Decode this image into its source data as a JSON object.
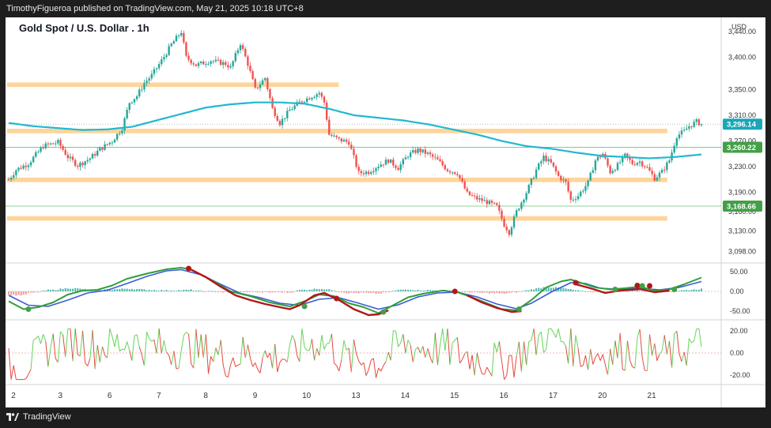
{
  "publisher_line": "TimothyFigueroa published on TradingView.com, May 21, 2025 10:18 UTC+8",
  "title": "Gold Spot / U.S. Dollar . 1h",
  "currency": "USD",
  "brand": "TradingView",
  "colors": {
    "up": "#26a69a",
    "down": "#ef5350",
    "ma": "#21b8d0",
    "zone": "#ffd49a",
    "green_line": "#4caf50",
    "fast_line": "#2e9e3a",
    "slow_line": "#3d5bd6",
    "red_line": "#b0171b"
  },
  "price_axis": {
    "ticks": [
      "3,440.00",
      "3,400.00",
      "3,350.00",
      "3,310.00",
      "3,270.00",
      "3,230.00",
      "3,190.00",
      "3,160.00",
      "3,130.00",
      "3,098.00"
    ],
    "tick_values": [
      3440,
      3400,
      3350,
      3310,
      3270,
      3230,
      3190,
      3160,
      3130,
      3098
    ],
    "range": [
      3090,
      3450
    ],
    "tags": [
      {
        "label": "3,296.14",
        "value": 3296.14,
        "color": "#1aa7b8"
      },
      {
        "label": "3,260.22",
        "value": 3260.22,
        "color": "#43a047"
      },
      {
        "label": "3,168.66",
        "value": 3168.66,
        "color": "#43a047"
      }
    ]
  },
  "zones": [
    {
      "low": 3354,
      "high": 3361,
      "from": 0,
      "to": 0.47
    },
    {
      "low": 3282,
      "high": 3289,
      "from": 0,
      "to": 0.93
    },
    {
      "low": 3206,
      "high": 3213,
      "from": 0,
      "to": 0.93
    },
    {
      "low": 3146,
      "high": 3153,
      "from": 0,
      "to": 0.93
    }
  ],
  "lines": [
    3260.22,
    3168.66
  ],
  "macd_axis": {
    "ticks": [
      "50.00",
      "0.00",
      "-50.00"
    ],
    "tick_values": [
      50,
      0,
      -50
    ]
  },
  "rsi_axis": {
    "ticks": [
      "20.00",
      "0.00",
      "-20.00"
    ],
    "tick_values": [
      20,
      0,
      -20
    ]
  },
  "x_axis": {
    "labels": [
      "2",
      "3",
      "6",
      "7",
      "8",
      "9",
      "10",
      "13",
      "14",
      "15",
      "16",
      "17",
      "20",
      "21"
    ]
  },
  "chart_data": {
    "type": "candlestick",
    "title": "Gold Spot / U.S. Dollar . 1h",
    "symbol": "XAUUSD",
    "interval": "1h",
    "anchors": [
      [
        0,
        3210
      ],
      [
        3,
        3225
      ],
      [
        8,
        3235
      ],
      [
        14,
        3262
      ],
      [
        20,
        3268
      ],
      [
        24,
        3245
      ],
      [
        28,
        3232
      ],
      [
        33,
        3243
      ],
      [
        37,
        3257
      ],
      [
        42,
        3270
      ],
      [
        46,
        3290
      ],
      [
        49,
        3330
      ],
      [
        52,
        3340
      ],
      [
        55,
        3360
      ],
      [
        58,
        3372
      ],
      [
        62,
        3395
      ],
      [
        66,
        3420
      ],
      [
        70,
        3440
      ],
      [
        72,
        3400
      ],
      [
        76,
        3388
      ],
      [
        82,
        3395
      ],
      [
        88,
        3390
      ],
      [
        90,
        3384
      ],
      [
        94,
        3422
      ],
      [
        97,
        3390
      ],
      [
        100,
        3350
      ],
      [
        104,
        3368
      ],
      [
        107,
        3320
      ],
      [
        110,
        3298
      ],
      [
        114,
        3318
      ],
      [
        118,
        3330
      ],
      [
        122,
        3338
      ],
      [
        126,
        3345
      ],
      [
        128,
        3330
      ],
      [
        130,
        3280
      ],
      [
        134,
        3272
      ],
      [
        138,
        3268
      ],
      [
        142,
        3220
      ],
      [
        146,
        3222
      ],
      [
        150,
        3232
      ],
      [
        154,
        3240
      ],
      [
        158,
        3228
      ],
      [
        162,
        3248
      ],
      [
        166,
        3256
      ],
      [
        170,
        3250
      ],
      [
        174,
        3240
      ],
      [
        178,
        3225
      ],
      [
        182,
        3220
      ],
      [
        186,
        3188
      ],
      [
        190,
        3180
      ],
      [
        194,
        3175
      ],
      [
        198,
        3168
      ],
      [
        201,
        3140
      ],
      [
        203,
        3128
      ],
      [
        206,
        3160
      ],
      [
        210,
        3190
      ],
      [
        214,
        3225
      ],
      [
        217,
        3245
      ],
      [
        220,
        3235
      ],
      [
        223,
        3215
      ],
      [
        226,
        3205
      ],
      [
        228,
        3178
      ],
      [
        231,
        3185
      ],
      [
        235,
        3205
      ],
      [
        238,
        3240
      ],
      [
        241,
        3250
      ],
      [
        244,
        3222
      ],
      [
        247,
        3232
      ],
      [
        250,
        3247
      ],
      [
        253,
        3235
      ],
      [
        256,
        3238
      ],
      [
        259,
        3228
      ],
      [
        262,
        3212
      ],
      [
        265,
        3222
      ],
      [
        268,
        3240
      ],
      [
        271,
        3278
      ],
      [
        274,
        3285
      ],
      [
        276,
        3293
      ],
      [
        279,
        3300
      ],
      [
        281,
        3296
      ]
    ],
    "ma_anchors": [
      [
        0,
        3298
      ],
      [
        10,
        3293
      ],
      [
        20,
        3290
      ],
      [
        30,
        3287
      ],
      [
        40,
        3288
      ],
      [
        50,
        3292
      ],
      [
        60,
        3302
      ],
      [
        70,
        3312
      ],
      [
        80,
        3322
      ],
      [
        90,
        3327
      ],
      [
        100,
        3330
      ],
      [
        110,
        3330
      ],
      [
        120,
        3328
      ],
      [
        130,
        3320
      ],
      [
        140,
        3310
      ],
      [
        150,
        3306
      ],
      [
        160,
        3302
      ],
      [
        170,
        3296
      ],
      [
        180,
        3288
      ],
      [
        190,
        3280
      ],
      [
        200,
        3270
      ],
      [
        210,
        3262
      ],
      [
        220,
        3258
      ],
      [
        230,
        3252
      ],
      [
        240,
        3247
      ],
      [
        250,
        3245
      ],
      [
        260,
        3243
      ],
      [
        270,
        3245
      ],
      [
        281,
        3249
      ]
    ],
    "macd_fast": [
      [
        0,
        -25
      ],
      [
        6,
        -45
      ],
      [
        12,
        -40
      ],
      [
        18,
        -28
      ],
      [
        24,
        -8
      ],
      [
        30,
        2
      ],
      [
        36,
        4
      ],
      [
        42,
        15
      ],
      [
        48,
        32
      ],
      [
        56,
        45
      ],
      [
        64,
        56
      ],
      [
        70,
        60
      ],
      [
        74,
        55
      ],
      [
        82,
        30
      ],
      [
        90,
        0
      ],
      [
        98,
        -12
      ],
      [
        106,
        -28
      ],
      [
        114,
        -38
      ],
      [
        120,
        -25
      ],
      [
        126,
        -8
      ],
      [
        132,
        -12
      ],
      [
        138,
        -30
      ],
      [
        144,
        -40
      ],
      [
        150,
        -55
      ],
      [
        156,
        -35
      ],
      [
        162,
        -15
      ],
      [
        168,
        -6
      ],
      [
        176,
        2
      ],
      [
        182,
        -2
      ],
      [
        188,
        -15
      ],
      [
        194,
        -30
      ],
      [
        200,
        -45
      ],
      [
        206,
        -48
      ],
      [
        212,
        -22
      ],
      [
        218,
        10
      ],
      [
        224,
        25
      ],
      [
        228,
        30
      ],
      [
        232,
        22
      ],
      [
        238,
        10
      ],
      [
        244,
        5
      ],
      [
        250,
        8
      ],
      [
        256,
        12
      ],
      [
        262,
        2
      ],
      [
        268,
        5
      ],
      [
        274,
        18
      ],
      [
        281,
        35
      ]
    ],
    "macd_slow": [
      [
        0,
        -10
      ],
      [
        8,
        -35
      ],
      [
        16,
        -38
      ],
      [
        24,
        -22
      ],
      [
        32,
        -4
      ],
      [
        40,
        3
      ],
      [
        48,
        20
      ],
      [
        56,
        38
      ],
      [
        64,
        52
      ],
      [
        70,
        55
      ],
      [
        78,
        42
      ],
      [
        86,
        18
      ],
      [
        94,
        -5
      ],
      [
        102,
        -16
      ],
      [
        110,
        -30
      ],
      [
        118,
        -35
      ],
      [
        126,
        -20
      ],
      [
        134,
        -16
      ],
      [
        142,
        -30
      ],
      [
        150,
        -45
      ],
      [
        158,
        -34
      ],
      [
        166,
        -14
      ],
      [
        174,
        -4
      ],
      [
        182,
        -2
      ],
      [
        190,
        -14
      ],
      [
        198,
        -32
      ],
      [
        206,
        -44
      ],
      [
        212,
        -30
      ],
      [
        220,
        -2
      ],
      [
        228,
        22
      ],
      [
        234,
        20
      ],
      [
        240,
        8
      ],
      [
        248,
        5
      ],
      [
        256,
        8
      ],
      [
        264,
        4
      ],
      [
        272,
        10
      ],
      [
        281,
        25
      ]
    ],
    "macd_red": [
      [
        74,
        55
      ],
      [
        80,
        36
      ],
      [
        86,
        12
      ],
      [
        92,
        -10
      ],
      [
        98,
        -22
      ],
      [
        104,
        -32
      ],
      [
        110,
        -40
      ],
      [
        114,
        -45
      ],
      [
        118,
        -35
      ],
      [
        124,
        -10
      ],
      [
        128,
        -4
      ],
      [
        134,
        -22
      ],
      [
        140,
        -45
      ],
      [
        146,
        -60
      ],
      [
        150,
        -58
      ],
      [
        154,
        -48
      ],
      [
        186,
        -10
      ],
      [
        192,
        -28
      ],
      [
        198,
        -42
      ],
      [
        204,
        -52
      ],
      [
        208,
        -50
      ],
      [
        230,
        18
      ],
      [
        236,
        8
      ],
      [
        242,
        -4
      ],
      [
        248,
        2
      ],
      [
        256,
        6
      ],
      [
        262,
        -2
      ],
      [
        268,
        2
      ]
    ],
    "macd_dots": [
      {
        "i": 8,
        "v": -45,
        "c": "#43a047"
      },
      {
        "i": 73,
        "v": 58,
        "c": "#b0171b"
      },
      {
        "i": 120,
        "v": -38,
        "c": "#43a047"
      },
      {
        "i": 133,
        "v": -18,
        "c": "#b0171b"
      },
      {
        "i": 152,
        "v": -52,
        "c": "#43a047"
      },
      {
        "i": 181,
        "v": 0,
        "c": "#b0171b"
      },
      {
        "i": 207,
        "v": -45,
        "c": "#43a047"
      },
      {
        "i": 230,
        "v": 22,
        "c": "#b0171b"
      },
      {
        "i": 246,
        "v": 5,
        "c": "#43a047"
      },
      {
        "i": 255,
        "v": 15,
        "c": "#b0171b"
      },
      {
        "i": 257,
        "v": 14,
        "c": "#43a047"
      },
      {
        "i": 260,
        "v": 14,
        "c": "#b0171b"
      },
      {
        "i": 270,
        "v": 5,
        "c": "#43a047"
      }
    ],
    "osc_seed": 7
  }
}
